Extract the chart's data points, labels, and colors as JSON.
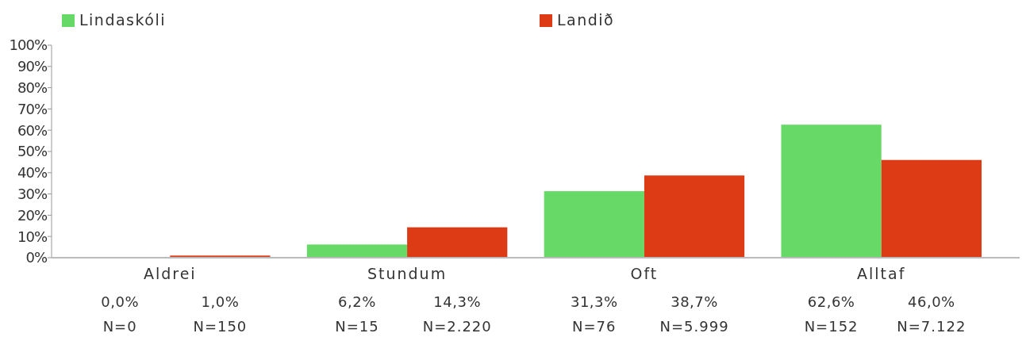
{
  "chart_data": {
    "type": "bar",
    "categories": [
      "Aldrei",
      "Stundum",
      "Oft",
      "Alltaf"
    ],
    "series": [
      {
        "name": "Lindaskóli",
        "color": "#66d966",
        "values": [
          0,
          6.2,
          31.3,
          62.6
        ],
        "value_labels": [
          "0,0%",
          "6,2%",
          "31,3%",
          "62,6%"
        ]
      },
      {
        "name": "Landið",
        "color": "#dd3a16",
        "values": [
          1.0,
          14.3,
          38.7,
          46.0
        ],
        "value_labels": [
          "1,0%",
          "14,3%",
          "38,7%",
          "46,0%"
        ]
      }
    ],
    "ylim": [
      0,
      100
    ],
    "yticks": [
      {
        "value": 0,
        "label": "0%"
      },
      {
        "value": 10,
        "label": "10%"
      },
      {
        "value": 20,
        "label": "20%"
      },
      {
        "value": 30,
        "label": "30%"
      },
      {
        "value": 40,
        "label": "40%"
      },
      {
        "value": 50,
        "label": "50%"
      },
      {
        "value": 60,
        "label": "60%"
      },
      {
        "value": 70,
        "label": "70%"
      },
      {
        "value": 80,
        "label": "80%"
      },
      {
        "value": 90,
        "label": "90%"
      },
      {
        "value": 100,
        "label": "100%"
      }
    ],
    "annotations": [
      "N=0",
      "N=150",
      "N=15",
      "N=2.220",
      "N=76",
      "N=5.999",
      "N=152",
      "N=7.122"
    ],
    "legend": "top",
    "grid": false
  }
}
